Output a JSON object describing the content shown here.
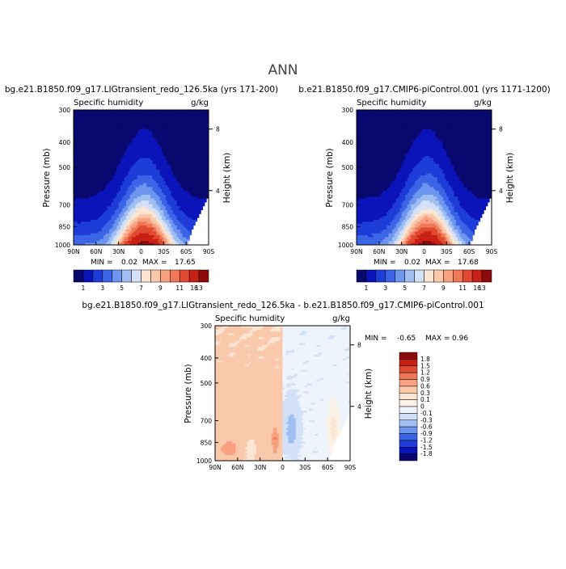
{
  "page_title": "ANN",
  "colors": {
    "abs_scale": [
      "#08086e",
      "#0a14b8",
      "#1e3cd8",
      "#3c64e6",
      "#6e96ee",
      "#a0bef2",
      "#d2e0f8",
      "#fae6d2",
      "#fac8aa",
      "#f8a080",
      "#f07858",
      "#e04a30",
      "#c82014",
      "#8c0a0a"
    ],
    "diff_scale": [
      "#08086e",
      "#0a14b8",
      "#1e3cd8",
      "#3c64e6",
      "#6e96ee",
      "#a0bef2",
      "#d2e0f8",
      "#eef4fc",
      "#fdf2e6",
      "#fae6d2",
      "#fac8aa",
      "#f8a080",
      "#f07858",
      "#e04a30",
      "#c82014",
      "#8c0a0a"
    ]
  },
  "chart_data": [
    {
      "id": "panel1",
      "type": "heatmap",
      "case_title": "bg.e21.B1850.f09_g17.LIGtransient_redo_126.5ka (yrs 171-200)",
      "variable": "Specific humidity",
      "units": "g/kg",
      "ylabel": "Pressure (mb)",
      "y2label": "Height (km)",
      "x_ticks": [
        "90N",
        "60N",
        "30N",
        "0",
        "30S",
        "60S",
        "90S"
      ],
      "y_ticks": [
        "300",
        "400",
        "500",
        "700",
        "850",
        "1000"
      ],
      "y_tick_values": [
        300,
        400,
        500,
        700,
        850,
        1000
      ],
      "y2_ticks": [
        "8",
        "4"
      ],
      "y2_tick_pressures": [
        356,
        616
      ],
      "ylim": [
        1000,
        300
      ],
      "xlim": [
        90,
        -90
      ],
      "min_label": "MIN =",
      "min_value": "0.02",
      "max_label": "MAX =",
      "max_value": "17.65",
      "surface_max_gkg": 17.65,
      "levels": [
        "1",
        "3",
        "5",
        "7",
        "9",
        "11",
        "13",
        "16"
      ]
    },
    {
      "id": "panel2",
      "type": "heatmap",
      "case_title": "b.e21.B1850.f09_g17.CMIP6-piControl.001 (yrs 1171-1200)",
      "variable": "Specific humidity",
      "units": "g/kg",
      "ylabel": "Pressure (mb)",
      "y2label": "Height (km)",
      "x_ticks": [
        "90N",
        "60N",
        "30N",
        "0",
        "30S",
        "60S",
        "90S"
      ],
      "y_ticks": [
        "300",
        "400",
        "500",
        "700",
        "850",
        "1000"
      ],
      "y_tick_values": [
        300,
        400,
        500,
        700,
        850,
        1000
      ],
      "y2_ticks": [
        "8",
        "4"
      ],
      "y2_tick_pressures": [
        356,
        616
      ],
      "ylim": [
        1000,
        300
      ],
      "xlim": [
        90,
        -90
      ],
      "min_label": "MIN =",
      "min_value": "0.02",
      "max_label": "MAX =",
      "max_value": "17.68",
      "surface_max_gkg": 17.68,
      "levels": [
        "1",
        "3",
        "5",
        "7",
        "9",
        "11",
        "13",
        "16"
      ]
    },
    {
      "id": "panel3",
      "type": "heatmap",
      "case_title": "bg.e21.B1850.f09_g17.LIGtransient_redo_126.5ka - b.e21.B1850.f09_g17.CMIP6-piControl.001",
      "variable": "Specific humidity",
      "units": "g/kg",
      "ylabel": "Pressure (mb)",
      "y2label": "Height (km)",
      "x_ticks": [
        "90N",
        "60N",
        "30N",
        "0",
        "30S",
        "60S",
        "90S"
      ],
      "y_ticks": [
        "300",
        "400",
        "500",
        "700",
        "850",
        "1000"
      ],
      "y_tick_values": [
        300,
        400,
        500,
        700,
        850,
        1000
      ],
      "y2_ticks": [
        "8",
        "4"
      ],
      "y2_tick_pressures": [
        356,
        616
      ],
      "ylim": [
        1000,
        300
      ],
      "xlim": [
        90,
        -90
      ],
      "min_label": "MIN =",
      "min_value": "-0.65",
      "max_label": "MAX =",
      "max_value": "0.96",
      "levels": [
        "1.8",
        "1.5",
        "1.2",
        "0.9",
        "0.6",
        "0.3",
        "0.1",
        "0",
        "-0.1",
        "-0.3",
        "-0.6",
        "-0.9",
        "-1.2",
        "-1.5",
        "-1.8"
      ]
    }
  ]
}
